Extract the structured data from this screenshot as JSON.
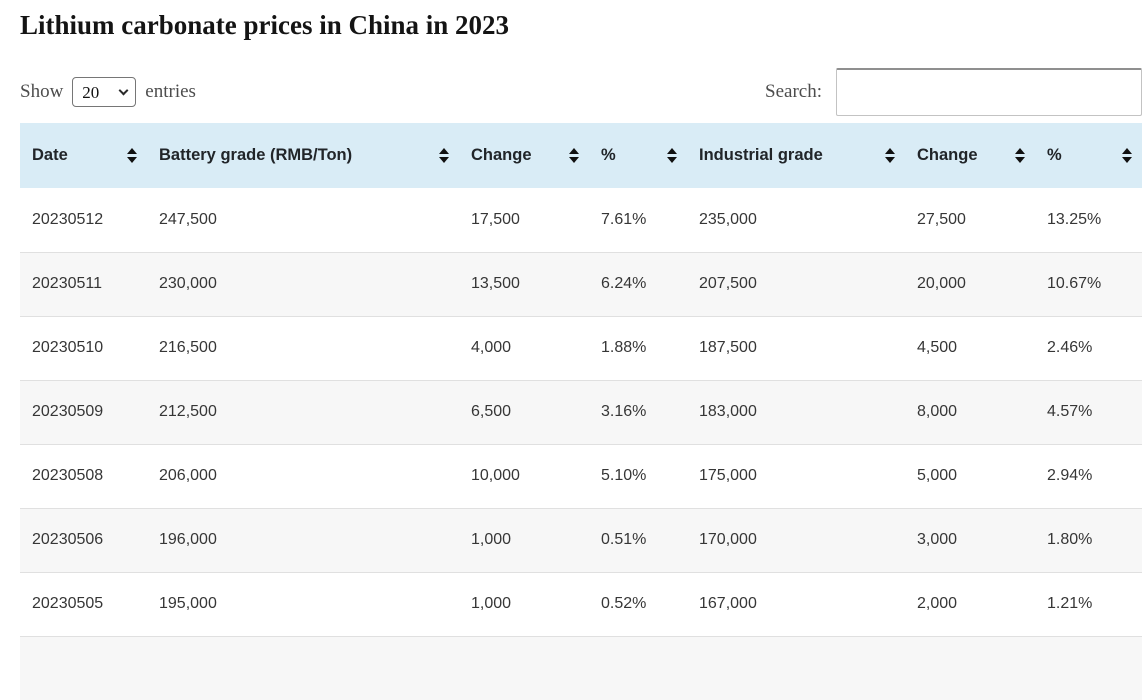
{
  "page": {
    "title": "Lithium carbonate prices in China in 2023"
  },
  "controls": {
    "show_label": "Show",
    "entries_label": "entries",
    "page_length": "20",
    "page_length_options": [
      "20"
    ],
    "search_label": "Search:",
    "search_value": ""
  },
  "colors": {
    "header_bg": "#d9ecf6",
    "stripe": "#f7f7f7",
    "row_border": "#e0e0e0"
  },
  "table": {
    "columns": [
      {
        "key": "date",
        "label": "Date",
        "sortable": true
      },
      {
        "key": "battery-grade",
        "label": "Battery grade (RMB/Ton)",
        "sortable": true
      },
      {
        "key": "change-battery",
        "label": "Change",
        "sortable": true
      },
      {
        "key": "pct-battery",
        "label": "%",
        "sortable": true
      },
      {
        "key": "industrial-grade",
        "label": "Industrial grade",
        "sortable": true
      },
      {
        "key": "change-industrial",
        "label": "Change",
        "sortable": true
      },
      {
        "key": "pct-industrial",
        "label": "%",
        "sortable": true
      }
    ],
    "rows": [
      [
        "20230512",
        "247,500",
        "17,500",
        "7.61%",
        "235,000",
        "27,500",
        "13.25%"
      ],
      [
        "20230511",
        "230,000",
        "13,500",
        "6.24%",
        "207,500",
        "20,000",
        "10.67%"
      ],
      [
        "20230510",
        "216,500",
        "4,000",
        "1.88%",
        "187,500",
        "4,500",
        "2.46%"
      ],
      [
        "20230509",
        "212,500",
        "6,500",
        "3.16%",
        "183,000",
        "8,000",
        "4.57%"
      ],
      [
        "20230508",
        "206,000",
        "10,000",
        "5.10%",
        "175,000",
        "5,000",
        "2.94%"
      ],
      [
        "20230506",
        "196,000",
        "1,000",
        "0.51%",
        "170,000",
        "3,000",
        "1.80%"
      ],
      [
        "20230505",
        "195,000",
        "1,000",
        "0.52%",
        "167,000",
        "2,000",
        "1.21%"
      ]
    ],
    "partial_next_row_visible": true
  }
}
